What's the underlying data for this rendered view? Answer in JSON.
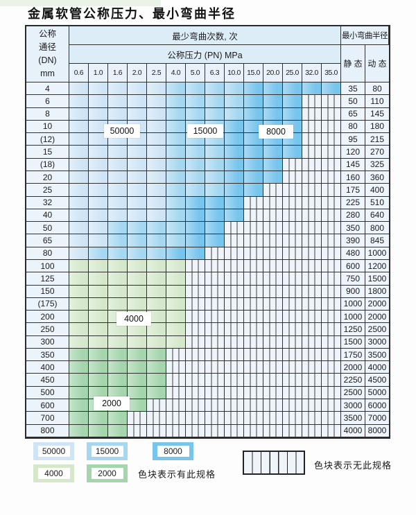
{
  "title": "金属软管公称压力、最小弯曲半径",
  "colors": {
    "blue_light": "#cfe5f5",
    "blue_medium": "#a6d7f0",
    "blue_dark": "#77c5ec",
    "green_light": "#d5e8cb",
    "green_medium": "#a4d5ac",
    "hatch_bg": "#eef4fa"
  },
  "table": {
    "header": {
      "dn_lines": [
        "公称",
        "通径",
        "(DN)",
        "mm"
      ],
      "bend_cycles_label": "最少弯曲次数, 次",
      "pressure_label": "公称压力 (PN) MPa",
      "radius_label": "最小弯曲半径",
      "static_label": "静 态",
      "dynamic_label": "动 态",
      "pressures": [
        "0.6",
        "1.0",
        "1.6",
        "2.0",
        "2.5",
        "4.0",
        "5.0",
        "6.3",
        "10.0",
        "15.0",
        "20.0",
        "25.0",
        "32.0",
        "35.0"
      ]
    },
    "rows": [
      {
        "dn": "4",
        "static": "35",
        "dynamic": "80",
        "bands": [
          [
            "blue_light",
            0,
            4
          ],
          [
            "blue_medium",
            5,
            8
          ],
          [
            "blue_dark",
            9,
            13
          ]
        ]
      },
      {
        "dn": "6",
        "static": "50",
        "dynamic": "110",
        "bands": [
          [
            "blue_light",
            0,
            4
          ],
          [
            "blue_medium",
            5,
            8
          ],
          [
            "blue_dark",
            9,
            11
          ]
        ]
      },
      {
        "dn": "8",
        "static": "65",
        "dynamic": "145",
        "bands": [
          [
            "blue_light",
            0,
            4
          ],
          [
            "blue_medium",
            5,
            8
          ],
          [
            "blue_dark",
            9,
            11
          ]
        ]
      },
      {
        "dn": "10",
        "static": "80",
        "dynamic": "180",
        "bands": [
          [
            "blue_light",
            0,
            4
          ],
          [
            "blue_medium",
            5,
            7
          ],
          [
            "blue_dark",
            8,
            11
          ]
        ]
      },
      {
        "dn": "(12)",
        "static": "95",
        "dynamic": "215",
        "bands": [
          [
            "blue_light",
            0,
            4
          ],
          [
            "blue_medium",
            5,
            7
          ],
          [
            "blue_dark",
            8,
            11
          ]
        ]
      },
      {
        "dn": "15",
        "static": "120",
        "dynamic": "270",
        "bands": [
          [
            "blue_light",
            0,
            4
          ],
          [
            "blue_medium",
            5,
            7
          ],
          [
            "blue_dark",
            8,
            11
          ]
        ]
      },
      {
        "dn": "(18)",
        "static": "145",
        "dynamic": "325",
        "bands": [
          [
            "blue_light",
            0,
            4
          ],
          [
            "blue_medium",
            5,
            7
          ],
          [
            "blue_dark",
            8,
            10
          ]
        ]
      },
      {
        "dn": "20",
        "static": "160",
        "dynamic": "360",
        "bands": [
          [
            "blue_light",
            0,
            4
          ],
          [
            "blue_medium",
            5,
            7
          ],
          [
            "blue_dark",
            8,
            10
          ]
        ]
      },
      {
        "dn": "25",
        "static": "175",
        "dynamic": "400",
        "bands": [
          [
            "blue_light",
            0,
            4
          ],
          [
            "blue_medium",
            5,
            7
          ],
          [
            "blue_dark",
            8,
            9
          ]
        ]
      },
      {
        "dn": "32",
        "static": "225",
        "dynamic": "510",
        "bands": [
          [
            "blue_light",
            0,
            4
          ],
          [
            "blue_medium",
            5,
            5
          ],
          [
            "blue_dark",
            6,
            8
          ]
        ]
      },
      {
        "dn": "40",
        "static": "280",
        "dynamic": "640",
        "bands": [
          [
            "blue_light",
            0,
            4
          ],
          [
            "blue_medium",
            5,
            5
          ],
          [
            "blue_dark",
            6,
            8
          ]
        ]
      },
      {
        "dn": "50",
        "static": "350",
        "dynamic": "800",
        "bands": [
          [
            "blue_light",
            0,
            1
          ],
          [
            "blue_medium",
            2,
            5
          ],
          [
            "blue_dark",
            6,
            7
          ]
        ]
      },
      {
        "dn": "65",
        "static": "390",
        "dynamic": "845",
        "bands": [
          [
            "blue_light",
            0,
            1
          ],
          [
            "blue_medium",
            2,
            5
          ],
          [
            "blue_dark",
            6,
            7
          ]
        ]
      },
      {
        "dn": "80",
        "static": "480",
        "dynamic": "1000",
        "bands": [
          [
            "blue_light",
            0,
            0
          ],
          [
            "blue_medium",
            1,
            4
          ],
          [
            "blue_dark",
            5,
            6
          ]
        ]
      },
      {
        "dn": "100",
        "static": "600",
        "dynamic": "1200",
        "bands": [
          [
            "green_light",
            0,
            5
          ]
        ]
      },
      {
        "dn": "125",
        "static": "750",
        "dynamic": "1500",
        "bands": [
          [
            "green_light",
            0,
            5
          ]
        ]
      },
      {
        "dn": "150",
        "static": "900",
        "dynamic": "1800",
        "bands": [
          [
            "green_light",
            0,
            5
          ]
        ]
      },
      {
        "dn": "(175)",
        "static": "1000",
        "dynamic": "2000",
        "bands": [
          [
            "green_light",
            0,
            5
          ]
        ]
      },
      {
        "dn": "200",
        "static": "1000",
        "dynamic": "2000",
        "bands": [
          [
            "green_light",
            0,
            5
          ]
        ]
      },
      {
        "dn": "250",
        "static": "1250",
        "dynamic": "2500",
        "bands": [
          [
            "green_light",
            0,
            5
          ]
        ]
      },
      {
        "dn": "300",
        "static": "1500",
        "dynamic": "3000",
        "bands": [
          [
            "green_light",
            0,
            5
          ]
        ]
      },
      {
        "dn": "350",
        "static": "1750",
        "dynamic": "3500",
        "bands": [
          [
            "green_medium",
            0,
            4
          ]
        ]
      },
      {
        "dn": "400",
        "static": "2000",
        "dynamic": "4000",
        "bands": [
          [
            "green_medium",
            0,
            4
          ]
        ]
      },
      {
        "dn": "450",
        "static": "2250",
        "dynamic": "4500",
        "bands": [
          [
            "green_medium",
            0,
            4
          ]
        ]
      },
      {
        "dn": "500",
        "static": "2500",
        "dynamic": "5000",
        "bands": [
          [
            "green_medium",
            0,
            4
          ]
        ]
      },
      {
        "dn": "600",
        "static": "3000",
        "dynamic": "6000",
        "bands": [
          [
            "green_medium",
            0,
            3
          ]
        ]
      },
      {
        "dn": "700",
        "static": "3500",
        "dynamic": "7000",
        "bands": [
          [
            "green_medium",
            0,
            2
          ]
        ]
      },
      {
        "dn": "800",
        "static": "4000",
        "dynamic": "8000",
        "bands": [
          [
            "green_medium",
            0,
            2
          ]
        ]
      }
    ]
  },
  "zone_labels": {
    "b50000": "50000",
    "b15000": "15000",
    "b8000": "8000",
    "g4000": "4000",
    "g2000": "2000"
  },
  "legend": {
    "items": [
      {
        "label": "50000",
        "color": "blue_light"
      },
      {
        "label": "15000",
        "color": "blue_medium"
      },
      {
        "label": "8000",
        "color": "blue_dark"
      },
      {
        "label": "4000",
        "color": "green_light"
      },
      {
        "label": "2000",
        "color": "green_medium"
      }
    ],
    "has_spec_text": "色块表示有此规格",
    "no_spec_text": "色块表示无此规格"
  }
}
